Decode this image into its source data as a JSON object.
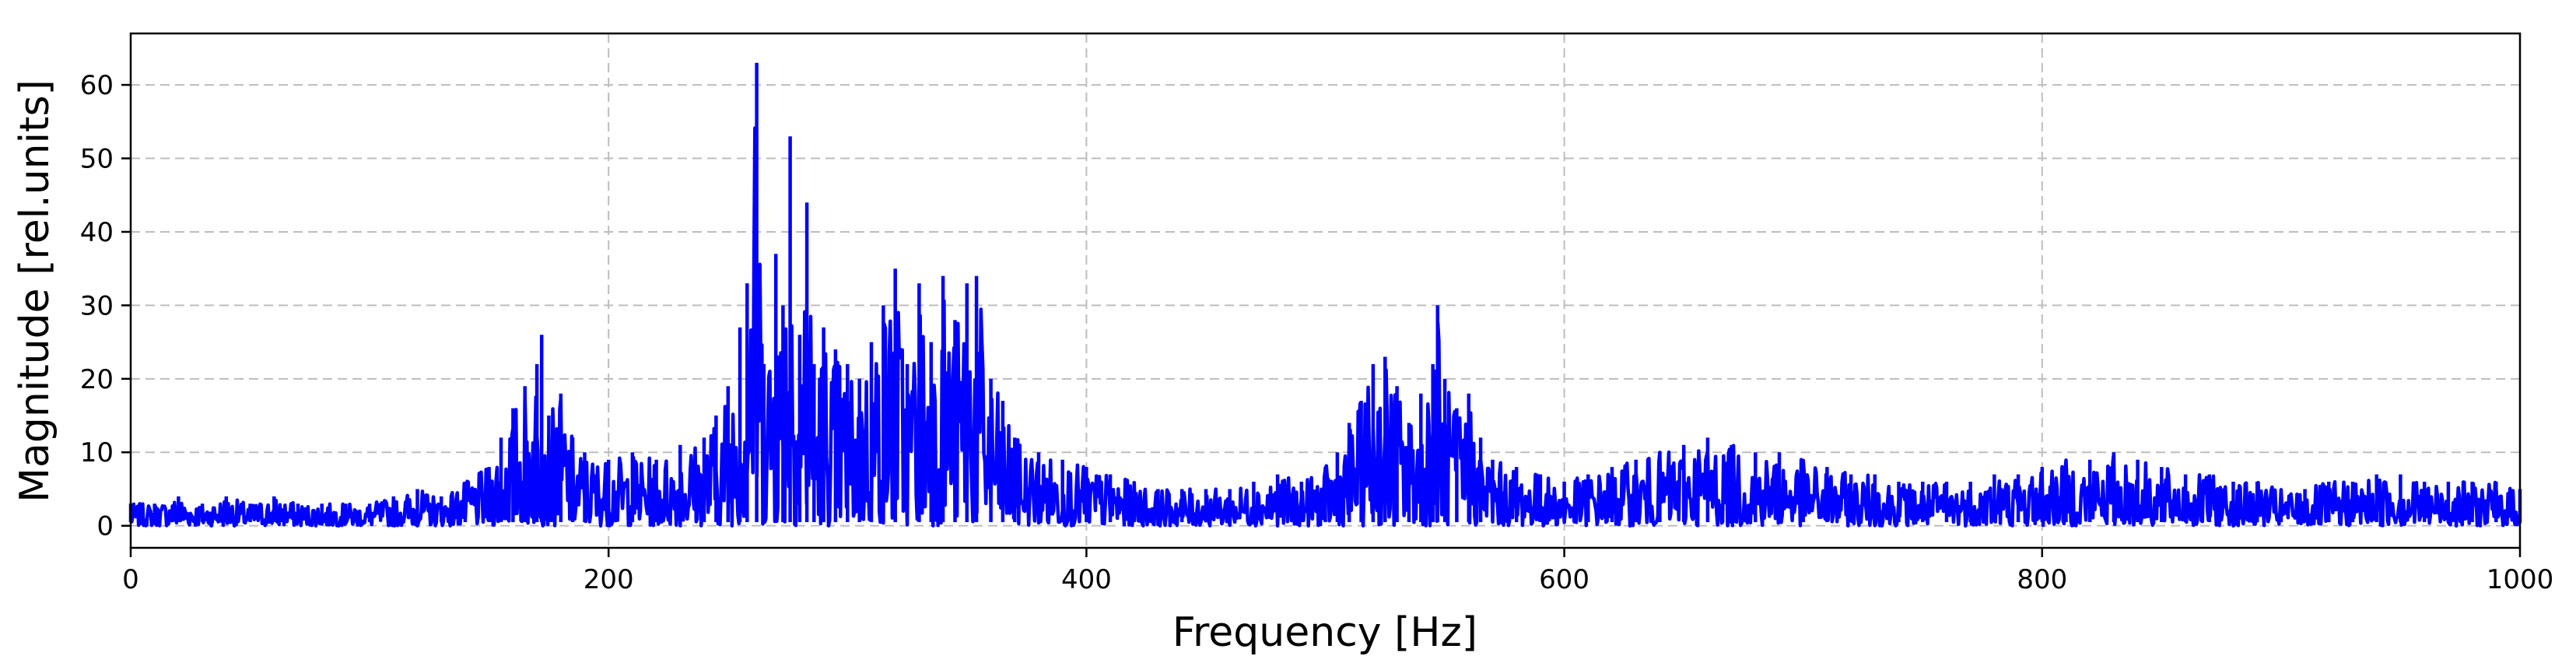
{
  "chart_data": {
    "type": "line",
    "title": "",
    "xlabel": "Frequency [Hz]",
    "ylabel": "Magnitude [rel.units]",
    "xlim": [
      0,
      1000
    ],
    "ylim": [
      -3,
      67
    ],
    "x_ticks": [
      0,
      200,
      400,
      600,
      800,
      1000
    ],
    "y_ticks": [
      0,
      10,
      20,
      30,
      40,
      50,
      60
    ],
    "grid": "dashed, light gray, both axes",
    "legend": "none",
    "series": [
      {
        "color": "#0000ff",
        "x": [
          0,
          10,
          20,
          30,
          40,
          50,
          60,
          70,
          80,
          90,
          100,
          110,
          120,
          130,
          140,
          150,
          155,
          160,
          165,
          170,
          172,
          175,
          180,
          185,
          190,
          200,
          210,
          220,
          230,
          240,
          245,
          250,
          255,
          258,
          262,
          265,
          270,
          273,
          276,
          280,
          283,
          286,
          290,
          295,
          300,
          305,
          310,
          315,
          320,
          325,
          330,
          335,
          340,
          345,
          350,
          354,
          360,
          365,
          370,
          380,
          390,
          400,
          410,
          420,
          430,
          440,
          450,
          460,
          470,
          480,
          490,
          500,
          505,
          510,
          515,
          520,
          525,
          530,
          535,
          540,
          545,
          547,
          550,
          555,
          560,
          565,
          570,
          580,
          590,
          600,
          610,
          620,
          630,
          640,
          650,
          660,
          670,
          680,
          690,
          700,
          710,
          720,
          730,
          740,
          750,
          760,
          770,
          780,
          790,
          800,
          810,
          820,
          830,
          840,
          850,
          860,
          870,
          880,
          890,
          900,
          910,
          920,
          930,
          940,
          950,
          960,
          970,
          980,
          990,
          1000
        ],
        "y": [
          3,
          3,
          4,
          3,
          4,
          3,
          4,
          3,
          3,
          3,
          3,
          4,
          5,
          4,
          6,
          8,
          12,
          16,
          19,
          22,
          26,
          15,
          18,
          12,
          10,
          9,
          10,
          9,
          11,
          12,
          15,
          19,
          27,
          33,
          63,
          22,
          37,
          30,
          53,
          26,
          44,
          22,
          27,
          24,
          22,
          20,
          25,
          30,
          35,
          22,
          33,
          25,
          34,
          28,
          33,
          34,
          20,
          17,
          12,
          10,
          9,
          8,
          7,
          6,
          5,
          5,
          5,
          5,
          6,
          7,
          6,
          8,
          10,
          14,
          17,
          22,
          23,
          19,
          14,
          18,
          22,
          30,
          20,
          16,
          18,
          12,
          9,
          8,
          7,
          6,
          7,
          8,
          9,
          10,
          11,
          12,
          11,
          10,
          10,
          9,
          8,
          7,
          7,
          6,
          6,
          6,
          6,
          7,
          7,
          8,
          9,
          9,
          10,
          9,
          8,
          7,
          7,
          6,
          6,
          5,
          5,
          6,
          6,
          7,
          7,
          6,
          6,
          6,
          6,
          5
        ]
      }
    ]
  }
}
